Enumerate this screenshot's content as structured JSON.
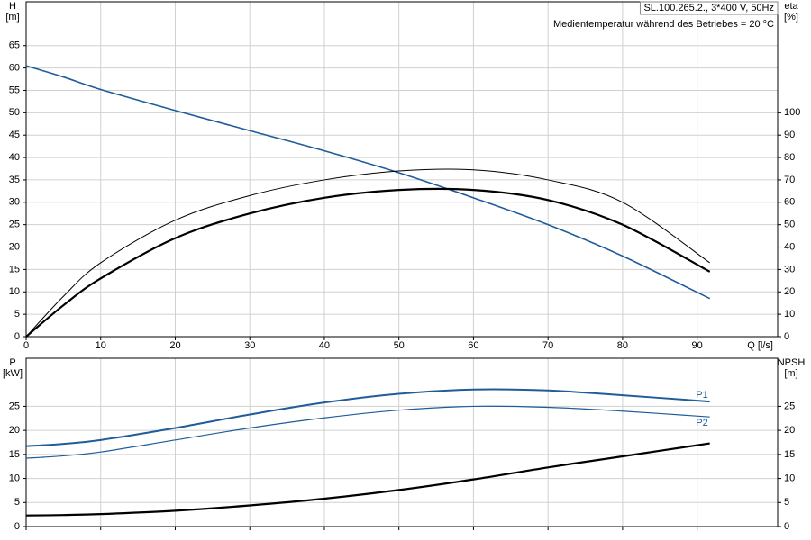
{
  "chart_data": [
    {
      "type": "line",
      "ylabel": "H",
      "yunit": "[m]",
      "y2label": "eta",
      "y2unit": "[%]",
      "xlabel": "Q [l/s]",
      "info": "SL.100.265.2., 3*400 V, 50Hz",
      "note": "Medientemperatur während des Betriebes = 20 °C",
      "x": [
        0,
        5,
        10,
        20,
        30,
        40,
        50,
        60,
        70,
        80,
        91.7
      ],
      "xlim": [
        0,
        100.8
      ],
      "xticks": [
        0,
        10,
        20,
        30,
        40,
        50,
        60,
        70,
        80,
        90
      ],
      "ylim": [
        0,
        74.8
      ],
      "yticks": [
        0,
        5,
        10,
        15,
        20,
        25,
        30,
        35,
        40,
        45,
        50,
        55,
        60,
        65
      ],
      "y2lim": [
        0,
        149.6
      ],
      "y2ticks": [
        0,
        10,
        20,
        30,
        40,
        50,
        60,
        70,
        80,
        90,
        100
      ],
      "grid": true,
      "series": [
        {
          "color": "#1f5c99",
          "line_width": 1.6,
          "values": [
            60.5,
            58,
            55.2,
            50.5,
            46,
            41.5,
            36.6,
            31,
            25,
            18,
            8.5
          ]
        },
        {
          "color": "#000000",
          "line_width": 1,
          "axis": "y2",
          "values": [
            0,
            18,
            33,
            52,
            63,
            70,
            74,
            74.5,
            70,
            60,
            33
          ]
        },
        {
          "color": "#000000",
          "line_width": 2.2,
          "axis": "y2",
          "values": [
            0,
            14,
            26,
            44,
            55,
            62,
            65.5,
            65.5,
            61,
            50,
            29
          ]
        }
      ]
    },
    {
      "type": "line",
      "ylabel": "P",
      "yunit": "[kW]",
      "y2label": "NPSH",
      "y2unit": "[m]",
      "x": [
        0,
        5,
        10,
        20,
        30,
        40,
        50,
        60,
        70,
        80,
        91.7
      ],
      "xlim": [
        0,
        100.8
      ],
      "xticks": [
        0,
        10,
        20,
        30,
        40,
        50,
        60,
        70,
        80,
        90
      ],
      "ylim": [
        0,
        35
      ],
      "yticks": [
        0,
        5,
        10,
        15,
        20,
        25
      ],
      "y2lim": [
        0,
        35
      ],
      "y2ticks": [
        0,
        5,
        10,
        15,
        20,
        25
      ],
      "grid": true,
      "series": [
        {
          "name": "P1",
          "color": "#1f5c99",
          "line_width": 2,
          "values": [
            16.7,
            17.2,
            18,
            20.5,
            23.3,
            25.8,
            27.6,
            28.5,
            28.3,
            27.3,
            26
          ]
        },
        {
          "name": "P2",
          "color": "#1f5c99",
          "line_width": 1.2,
          "values": [
            14.2,
            14.7,
            15.5,
            18,
            20.5,
            22.6,
            24.2,
            25,
            24.8,
            24,
            22.8
          ]
        },
        {
          "color": "#000000",
          "line_width": 2.2,
          "axis": "y2",
          "values": [
            2.3,
            2.4,
            2.6,
            3.3,
            4.4,
            5.8,
            7.6,
            9.8,
            12.3,
            14.6,
            17.3
          ]
        }
      ]
    }
  ]
}
